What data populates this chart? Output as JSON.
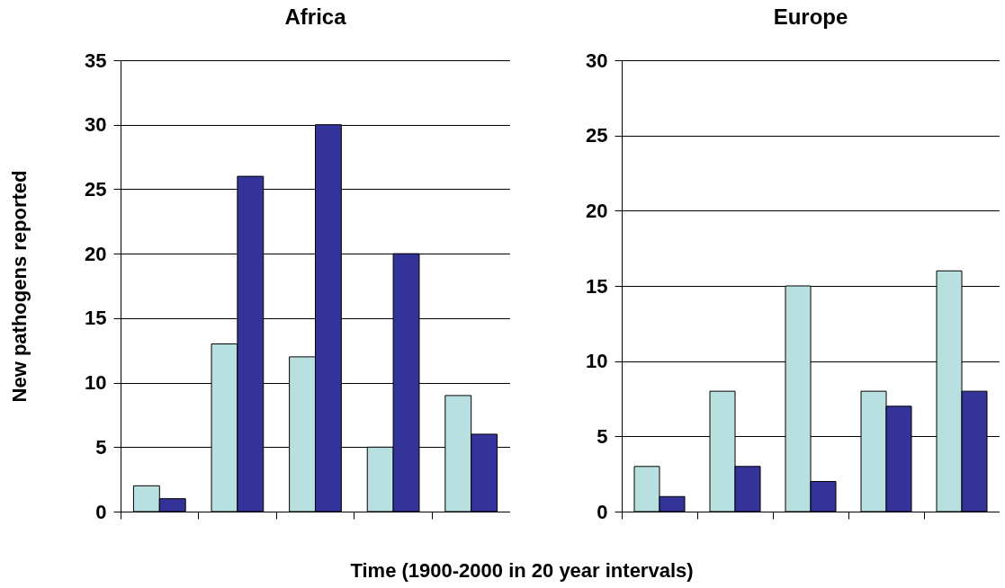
{
  "chart_data": [
    {
      "type": "bar",
      "title": "Africa",
      "ylabel": "New pathogens reported",
      "xlabel": "Time (1900-2000 in 20 year intervals)",
      "categories": [
        null,
        null,
        null,
        null,
        null
      ],
      "series": [
        {
          "color": "#b8e0e0",
          "values": [
            2,
            13,
            12,
            5,
            9
          ]
        },
        {
          "color": "#333399",
          "values": [
            1,
            26,
            30,
            20,
            6
          ]
        }
      ],
      "ylim": [
        0,
        35
      ],
      "yticks": [
        0,
        5,
        10,
        15,
        20,
        25,
        30,
        35
      ],
      "grid": "y",
      "tick_labels": "y"
    },
    {
      "type": "bar",
      "title": "Europe",
      "categories": [
        null,
        null,
        null,
        null,
        null
      ],
      "series": [
        {
          "color": "#b8e0e0",
          "values": [
            3,
            8,
            15,
            8,
            16
          ]
        },
        {
          "color": "#333399",
          "values": [
            1,
            3,
            2,
            7,
            8
          ]
        }
      ],
      "ylim": [
        0,
        30
      ],
      "yticks": [
        0,
        5,
        10,
        15,
        20,
        25,
        30
      ],
      "grid": "y",
      "tick_labels": "y"
    }
  ]
}
